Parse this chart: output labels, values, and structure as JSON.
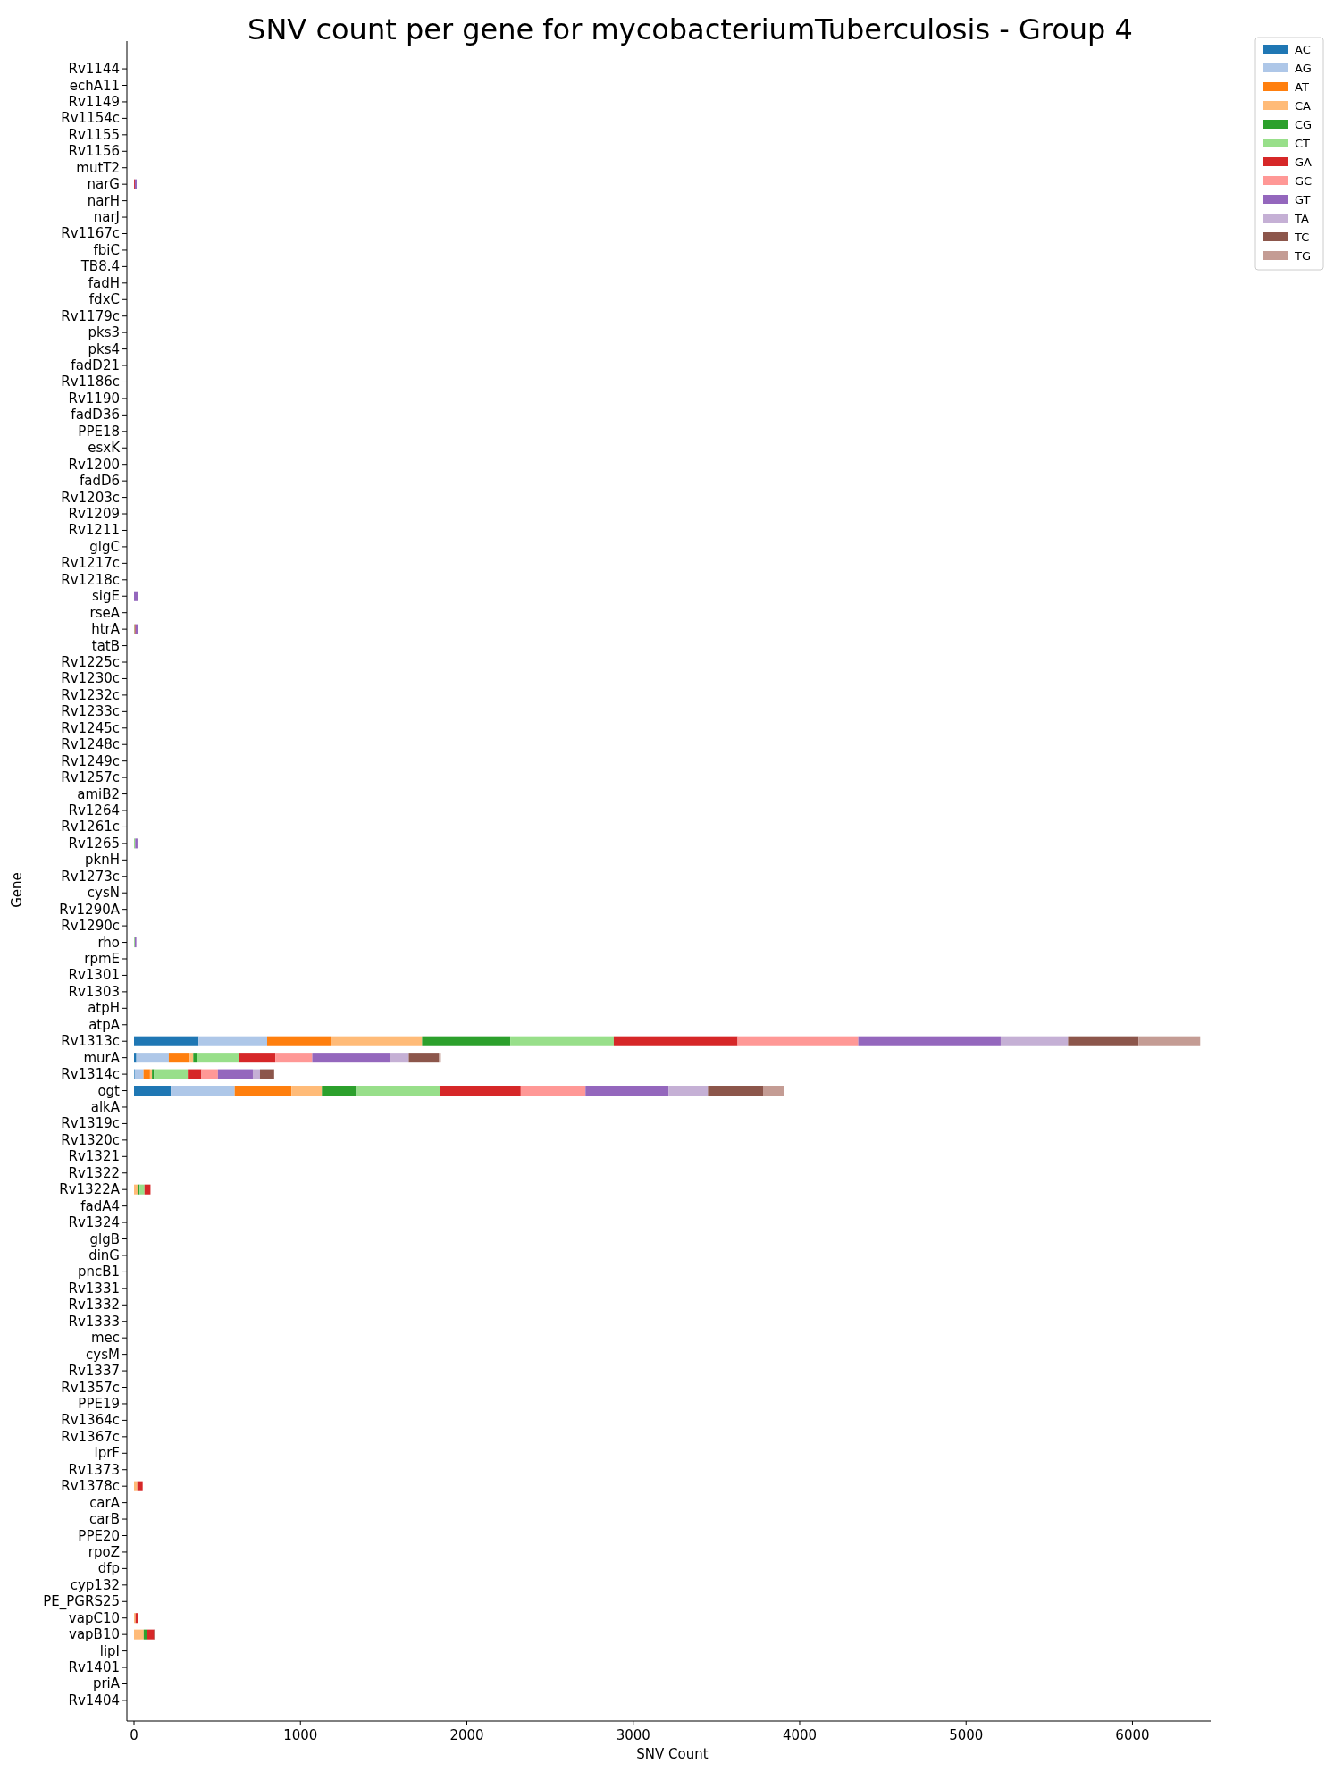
{
  "chart_data": {
    "type": "bar",
    "orientation": "horizontal",
    "stacked": true,
    "title": "SNV count per gene for mycobacteriumTuberculosis - Group 4",
    "xlabel": "SNV Count",
    "ylabel": "Gene",
    "categories": [
      "Rv1144",
      "echA11",
      "Rv1149",
      "Rv1154c",
      "Rv1155",
      "Rv1156",
      "mutT2",
      "narG",
      "narH",
      "narJ",
      "Rv1167c",
      "fbiC",
      "TB8.4",
      "fadH",
      "fdxC",
      "Rv1179c",
      "pks3",
      "pks4",
      "fadD21",
      "Rv1186c",
      "Rv1190",
      "fadD36",
      "PPE18",
      "esxK",
      "Rv1200",
      "fadD6",
      "Rv1203c",
      "Rv1209",
      "Rv1211",
      "glgC",
      "Rv1217c",
      "Rv1218c",
      "sigE",
      "rseA",
      "htrA",
      "tatB",
      "Rv1225c",
      "Rv1230c",
      "Rv1232c",
      "Rv1233c",
      "Rv1245c",
      "Rv1248c",
      "Rv1249c",
      "Rv1257c",
      "amiB2",
      "Rv1264",
      "Rv1261c",
      "Rv1265",
      "pknH",
      "Rv1273c",
      "cysN",
      "Rv1290A",
      "Rv1290c",
      "rho",
      "rpmE",
      "Rv1301",
      "Rv1303",
      "atpH",
      "atpA",
      "Rv1313c",
      "murA",
      "Rv1314c",
      "ogt",
      "alkA",
      "Rv1319c",
      "Rv1320c",
      "Rv1321",
      "Rv1322",
      "Rv1322A",
      "fadA4",
      "Rv1324",
      "glgB",
      "dinG",
      "pncB1",
      "Rv1331",
      "Rv1332",
      "Rv1333",
      "mec",
      "cysM",
      "Rv1337",
      "Rv1357c",
      "PPE19",
      "Rv1364c",
      "Rv1367c",
      "lprF",
      "Rv1373",
      "Rv1378c",
      "carA",
      "carB",
      "PPE20",
      "rpoZ",
      "dfp",
      "cyp132",
      "PE_PGRS25",
      "vapC10",
      "vapB10",
      "lipI",
      "Rv1401",
      "priA",
      "Rv1404"
    ],
    "series": [
      {
        "name": "AC",
        "color": "#1f77b4",
        "values": [
          0,
          0,
          0,
          0,
          0,
          0,
          0,
          0,
          0,
          0,
          0,
          0,
          0,
          0,
          0,
          0,
          0,
          0,
          0,
          0,
          0,
          0,
          0,
          0,
          0,
          0,
          0,
          0,
          0,
          0,
          0,
          0,
          0,
          0,
          0,
          0,
          0,
          0,
          0,
          0,
          0,
          0,
          0,
          0,
          0,
          0,
          0,
          0,
          0,
          0,
          0,
          0,
          0,
          0,
          0,
          0,
          0,
          0,
          0,
          388,
          14,
          4,
          221,
          0,
          0,
          0,
          0,
          0,
          0,
          0,
          0,
          0,
          0,
          0,
          0,
          0,
          0,
          0,
          0,
          0,
          0,
          0,
          0,
          0,
          0,
          0,
          0,
          0,
          0,
          0,
          0,
          0,
          0,
          0,
          0,
          0,
          0,
          0,
          0,
          0
        ]
      },
      {
        "name": "AG",
        "color": "#aec7e8",
        "values": [
          0,
          0,
          0,
          0,
          0,
          0,
          0,
          0,
          0,
          0,
          0,
          0,
          0,
          0,
          0,
          0,
          0,
          0,
          0,
          0,
          0,
          0,
          0,
          0,
          0,
          0,
          0,
          0,
          0,
          0,
          0,
          0,
          0,
          0,
          0,
          0,
          0,
          0,
          0,
          0,
          0,
          0,
          0,
          0,
          0,
          0,
          0,
          0,
          0,
          0,
          0,
          0,
          0,
          0,
          0,
          0,
          0,
          0,
          0,
          412,
          195,
          53,
          384,
          0,
          0,
          0,
          0,
          0,
          0,
          0,
          0,
          0,
          0,
          0,
          0,
          0,
          0,
          0,
          0,
          0,
          0,
          0,
          0,
          0,
          0,
          0,
          0,
          0,
          0,
          0,
          0,
          0,
          0,
          0,
          0,
          0,
          0,
          0,
          0,
          0
        ]
      },
      {
        "name": "AT",
        "color": "#ff7f0e",
        "values": [
          0,
          0,
          0,
          0,
          0,
          0,
          0,
          0,
          0,
          0,
          0,
          0,
          0,
          0,
          0,
          0,
          0,
          0,
          0,
          0,
          0,
          0,
          0,
          0,
          0,
          0,
          0,
          0,
          0,
          0,
          0,
          0,
          0,
          0,
          0,
          0,
          0,
          0,
          0,
          0,
          0,
          0,
          0,
          0,
          0,
          0,
          0,
          0,
          0,
          0,
          0,
          0,
          0,
          0,
          0,
          0,
          0,
          0,
          0,
          385,
          126,
          39,
          341,
          0,
          0,
          0,
          0,
          0,
          0,
          0,
          0,
          0,
          0,
          0,
          0,
          0,
          0,
          0,
          0,
          0,
          0,
          0,
          0,
          0,
          0,
          0,
          0,
          0,
          0,
          0,
          0,
          0,
          0,
          0,
          0,
          0,
          0,
          0,
          0,
          0
        ]
      },
      {
        "name": "CA",
        "color": "#ffbb78",
        "values": [
          0,
          0,
          0,
          0,
          0,
          0,
          0,
          0,
          0,
          0,
          0,
          0,
          0,
          0,
          0,
          0,
          0,
          0,
          0,
          0,
          0,
          0,
          0,
          0,
          0,
          0,
          0,
          0,
          0,
          0,
          0,
          0,
          0,
          0,
          0,
          0,
          0,
          0,
          0,
          0,
          0,
          0,
          0,
          0,
          0,
          0,
          0,
          0,
          0,
          0,
          0,
          0,
          0,
          0,
          0,
          0,
          0,
          0,
          0,
          546,
          21,
          12,
          183,
          0,
          0,
          0,
          0,
          0,
          25,
          0,
          0,
          0,
          0,
          0,
          0,
          0,
          0,
          0,
          0,
          0,
          0,
          0,
          0,
          0,
          0,
          0,
          20,
          0,
          0,
          0,
          0,
          0,
          0,
          0,
          9,
          58,
          0,
          0,
          0,
          0
        ]
      },
      {
        "name": "CG",
        "color": "#2ca02c",
        "values": [
          0,
          0,
          0,
          0,
          0,
          0,
          0,
          0,
          0,
          0,
          0,
          0,
          0,
          0,
          0,
          0,
          0,
          0,
          0,
          0,
          0,
          0,
          0,
          0,
          0,
          0,
          0,
          0,
          0,
          0,
          0,
          0,
          0,
          0,
          0,
          0,
          0,
          0,
          0,
          0,
          0,
          0,
          0,
          0,
          0,
          0,
          0,
          0,
          0,
          0,
          0,
          0,
          0,
          0,
          0,
          0,
          0,
          0,
          0,
          530,
          22,
          12,
          205,
          0,
          0,
          0,
          0,
          0,
          9,
          0,
          0,
          0,
          0,
          0,
          0,
          0,
          0,
          0,
          0,
          0,
          0,
          0,
          0,
          0,
          0,
          0,
          0,
          0,
          0,
          0,
          0,
          0,
          0,
          0,
          0,
          18,
          0,
          0,
          0,
          0
        ]
      },
      {
        "name": "CT",
        "color": "#98df8a",
        "values": [
          0,
          0,
          0,
          0,
          0,
          0,
          0,
          0,
          0,
          0,
          0,
          0,
          0,
          0,
          0,
          0,
          0,
          0,
          0,
          0,
          0,
          0,
          0,
          0,
          0,
          0,
          0,
          0,
          0,
          0,
          0,
          0,
          0,
          0,
          4,
          0,
          0,
          0,
          0,
          0,
          0,
          0,
          0,
          0,
          0,
          0,
          0,
          7,
          0,
          0,
          0,
          0,
          0,
          5,
          0,
          0,
          0,
          0,
          0,
          622,
          254,
          203,
          503,
          0,
          0,
          0,
          0,
          0,
          29,
          0,
          0,
          0,
          0,
          0,
          0,
          0,
          0,
          0,
          0,
          0,
          0,
          0,
          0,
          0,
          0,
          0,
          0,
          0,
          0,
          0,
          0,
          0,
          0,
          0,
          0,
          0,
          0,
          0,
          0,
          0
        ]
      },
      {
        "name": "GA",
        "color": "#d62728",
        "values": [
          0,
          0,
          0,
          0,
          0,
          0,
          0,
          5,
          0,
          0,
          0,
          0,
          0,
          0,
          0,
          0,
          0,
          0,
          0,
          0,
          0,
          0,
          0,
          0,
          0,
          0,
          0,
          0,
          0,
          0,
          0,
          0,
          0,
          0,
          5,
          0,
          0,
          0,
          0,
          0,
          0,
          0,
          0,
          0,
          0,
          0,
          0,
          0,
          0,
          0,
          0,
          0,
          0,
          0,
          0,
          0,
          0,
          0,
          0,
          744,
          217,
          82,
          487,
          0,
          0,
          0,
          0,
          0,
          36,
          0,
          0,
          0,
          0,
          0,
          0,
          0,
          0,
          0,
          0,
          0,
          0,
          0,
          0,
          0,
          0,
          0,
          32,
          0,
          0,
          0,
          0,
          0,
          0,
          0,
          14,
          45,
          0,
          0,
          0,
          0
        ]
      },
      {
        "name": "GC",
        "color": "#ff9896",
        "values": [
          0,
          0,
          0,
          0,
          0,
          0,
          0,
          0,
          0,
          0,
          0,
          0,
          0,
          0,
          0,
          0,
          0,
          0,
          0,
          0,
          0,
          0,
          0,
          0,
          0,
          0,
          0,
          0,
          0,
          0,
          0,
          0,
          0,
          0,
          0,
          0,
          0,
          0,
          0,
          0,
          0,
          0,
          0,
          0,
          0,
          0,
          0,
          0,
          0,
          0,
          0,
          0,
          0,
          0,
          0,
          0,
          0,
          0,
          0,
          725,
          222,
          99,
          389,
          0,
          0,
          0,
          0,
          0,
          0,
          0,
          0,
          0,
          0,
          0,
          0,
          0,
          0,
          0,
          0,
          0,
          0,
          0,
          0,
          0,
          0,
          0,
          0,
          0,
          0,
          0,
          0,
          0,
          0,
          0,
          0,
          0,
          0,
          0,
          0,
          0
        ]
      },
      {
        "name": "GT",
        "color": "#9467bd",
        "values": [
          0,
          0,
          0,
          0,
          0,
          0,
          0,
          11,
          0,
          0,
          0,
          0,
          0,
          0,
          0,
          0,
          0,
          0,
          0,
          0,
          0,
          0,
          0,
          0,
          0,
          0,
          0,
          0,
          0,
          0,
          0,
          0,
          22,
          0,
          13,
          0,
          0,
          0,
          0,
          0,
          0,
          0,
          0,
          0,
          0,
          0,
          0,
          14,
          0,
          0,
          0,
          0,
          0,
          9,
          0,
          0,
          0,
          0,
          0,
          856,
          468,
          210,
          500,
          0,
          0,
          0,
          0,
          0,
          0,
          0,
          0,
          0,
          0,
          0,
          0,
          0,
          0,
          0,
          0,
          0,
          0,
          0,
          0,
          0,
          0,
          0,
          0,
          0,
          0,
          0,
          0,
          0,
          0,
          0,
          0,
          0,
          0,
          0,
          0,
          0
        ]
      },
      {
        "name": "TA",
        "color": "#c5b0d5",
        "values": [
          0,
          0,
          0,
          0,
          0,
          0,
          0,
          0,
          0,
          0,
          0,
          0,
          0,
          0,
          0,
          0,
          0,
          0,
          0,
          0,
          0,
          0,
          0,
          0,
          0,
          0,
          0,
          0,
          0,
          0,
          0,
          0,
          0,
          0,
          0,
          0,
          0,
          0,
          0,
          0,
          0,
          0,
          0,
          0,
          0,
          0,
          0,
          0,
          0,
          0,
          0,
          0,
          0,
          0,
          0,
          0,
          0,
          0,
          0,
          405,
          112,
          43,
          236,
          0,
          0,
          0,
          0,
          0,
          0,
          0,
          0,
          0,
          0,
          0,
          0,
          0,
          0,
          0,
          0,
          0,
          0,
          0,
          0,
          0,
          0,
          0,
          0,
          0,
          0,
          0,
          0,
          0,
          0,
          0,
          0,
          0,
          0,
          0,
          0,
          0
        ]
      },
      {
        "name": "TC",
        "color": "#8c564b",
        "values": [
          0,
          0,
          0,
          0,
          0,
          0,
          0,
          0,
          0,
          0,
          0,
          0,
          0,
          0,
          0,
          0,
          0,
          0,
          0,
          0,
          0,
          0,
          0,
          0,
          0,
          0,
          0,
          0,
          0,
          0,
          0,
          0,
          0,
          0,
          0,
          0,
          0,
          0,
          0,
          0,
          0,
          0,
          0,
          0,
          0,
          0,
          0,
          0,
          0,
          0,
          0,
          0,
          0,
          0,
          0,
          0,
          0,
          0,
          0,
          423,
          181,
          85,
          331,
          0,
          0,
          0,
          0,
          0,
          0,
          0,
          0,
          0,
          0,
          0,
          0,
          0,
          0,
          0,
          0,
          0,
          0,
          0,
          0,
          0,
          0,
          0,
          0,
          0,
          0,
          0,
          0,
          0,
          0,
          0,
          0,
          7,
          0,
          0,
          0,
          0
        ]
      },
      {
        "name": "TG",
        "color": "#c49c94",
        "values": [
          0,
          0,
          0,
          0,
          0,
          0,
          0,
          0,
          0,
          0,
          0,
          0,
          0,
          0,
          0,
          0,
          0,
          0,
          0,
          0,
          0,
          0,
          0,
          0,
          0,
          0,
          0,
          0,
          0,
          0,
          0,
          0,
          0,
          0,
          0,
          0,
          0,
          0,
          0,
          0,
          0,
          0,
          0,
          0,
          0,
          0,
          0,
          0,
          0,
          0,
          0,
          0,
          0,
          0,
          0,
          0,
          0,
          0,
          0,
          371,
          12,
          0,
          124,
          0,
          0,
          0,
          0,
          0,
          0,
          0,
          0,
          0,
          0,
          0,
          0,
          0,
          0,
          0,
          0,
          0,
          0,
          0,
          0,
          0,
          0,
          0,
          0,
          0,
          0,
          0,
          0,
          0,
          0,
          0,
          0,
          0,
          0,
          0,
          0,
          0
        ]
      }
    ],
    "xlim": [
      0,
      6470
    ],
    "xticks": [
      0,
      1000,
      2000,
      3000,
      4000,
      5000,
      6000
    ],
    "grid": false,
    "legend": "top right"
  }
}
